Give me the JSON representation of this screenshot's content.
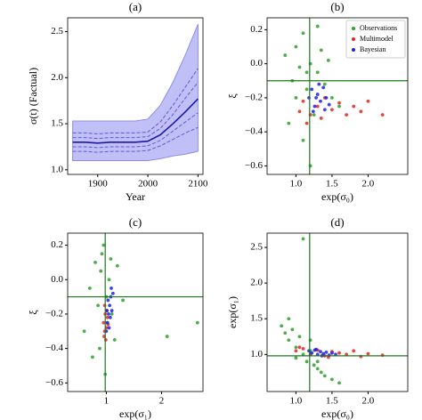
{
  "chart_data": [
    {
      "type": "line",
      "title": "(a)",
      "xlabel": "Year",
      "ylabel": "σ(t) (Factual)",
      "x": [
        1850,
        1875,
        1900,
        1925,
        1950,
        1975,
        2000,
        2025,
        2050,
        2075,
        2100
      ],
      "band": {
        "color": "#8c8cf0",
        "lower": [
          1.1,
          1.1,
          1.1,
          1.1,
          1.1,
          1.1,
          1.1,
          1.12,
          1.15,
          1.17,
          1.2
        ],
        "upper": [
          1.53,
          1.53,
          1.53,
          1.53,
          1.53,
          1.53,
          1.55,
          1.7,
          1.95,
          2.25,
          2.58
        ]
      },
      "series": [
        {
          "color": "#5a5ad8",
          "linestyle": "dashed",
          "values": [
            1.35,
            1.35,
            1.34,
            1.35,
            1.35,
            1.35,
            1.36,
            1.45,
            1.6,
            1.78,
            1.95
          ]
        },
        {
          "color": "#5a5ad8",
          "linestyle": "dashed",
          "values": [
            1.25,
            1.25,
            1.24,
            1.25,
            1.25,
            1.25,
            1.26,
            1.32,
            1.42,
            1.52,
            1.62
          ]
        },
        {
          "color": "#5a5ad8",
          "linestyle": "dashed",
          "values": [
            1.4,
            1.4,
            1.39,
            1.4,
            1.4,
            1.4,
            1.41,
            1.52,
            1.7,
            1.9,
            2.1
          ]
        },
        {
          "color": "#5a5ad8",
          "linestyle": "dashed",
          "values": [
            1.2,
            1.2,
            1.19,
            1.2,
            1.2,
            1.2,
            1.21,
            1.26,
            1.33,
            1.4,
            1.46
          ]
        },
        {
          "color": "#1a1aa0",
          "linestyle": "solid",
          "values": [
            1.3,
            1.3,
            1.29,
            1.3,
            1.3,
            1.3,
            1.31,
            1.38,
            1.5,
            1.63,
            1.77
          ]
        }
      ],
      "xlim": [
        1840,
        2110
      ],
      "xticks": [
        1900,
        2000,
        2100
      ],
      "ylim": [
        0.95,
        2.65
      ],
      "yticks": [
        {
          "value": 1,
          "label": "1.0"
        },
        1.5,
        {
          "value": 2,
          "label": "2.0"
        },
        2.5
      ]
    },
    {
      "type": "scatter",
      "title": "(b)",
      "xlabel": "exp(σ₀)",
      "ylabel": "ξ",
      "legend": "upper right",
      "series": [
        {
          "name": "Observations",
          "color": "#2ca02c",
          "x": [
            0.85,
            0.95,
            1.0,
            1.05,
            1.1,
            1.15,
            1.2,
            1.25,
            1.3,
            1.35,
            1.4,
            1.5,
            1.6,
            0.9,
            1.1,
            1.2,
            1.3,
            1.0,
            1.15,
            1.45
          ],
          "values": [
            0.05,
            -0.1,
            0.1,
            -0.02,
            0.18,
            -0.15,
            0.0,
            -0.3,
            -0.05,
            0.08,
            -0.12,
            -0.2,
            -0.25,
            -0.35,
            -0.45,
            -0.6,
            0.22,
            -0.2,
            -0.05,
            0.02
          ]
        },
        {
          "name": "Multimodel",
          "color": "#e8221e",
          "x": [
            1.05,
            1.1,
            1.2,
            1.3,
            1.4,
            1.5,
            1.6,
            1.7,
            1.8,
            1.9,
            2.0,
            2.2,
            1.15,
            1.35
          ],
          "values": [
            -0.28,
            -0.22,
            -0.3,
            -0.25,
            -0.2,
            -0.27,
            -0.23,
            -0.3,
            -0.25,
            -0.28,
            -0.22,
            -0.3,
            -0.35,
            -0.32
          ]
        },
        {
          "name": "Bayesian",
          "color": "#1f1fe8",
          "x": [
            1.18,
            1.22,
            1.26,
            1.3,
            1.34,
            1.38,
            1.42,
            1.46,
            1.24,
            1.32,
            1.4,
            1.28
          ],
          "values": [
            -0.2,
            -0.15,
            -0.25,
            -0.18,
            -0.22,
            -0.14,
            -0.2,
            -0.24,
            -0.28,
            -0.12,
            -0.27,
            -0.2
          ]
        }
      ],
      "hlines": [
        -0.1
      ],
      "vlines": [
        1.19
      ],
      "refcolor": "#1a7a1a",
      "xlim": [
        0.6,
        2.55
      ],
      "xticks": [
        {
          "value": 1,
          "label": "1.0"
        },
        1.5,
        {
          "value": 2,
          "label": "2.0"
        }
      ],
      "ylim": [
        -0.65,
        0.27
      ],
      "yticks": [
        {
          "value": -0.6,
          "label": "−0.6"
        },
        {
          "value": -0.4,
          "label": "−0.4"
        },
        {
          "value": -0.2,
          "label": "−0.2"
        },
        {
          "value": 0,
          "label": "0.0"
        },
        0.2
      ]
    },
    {
      "type": "scatter",
      "title": "(c)",
      "xlabel": "exp(σ₁)",
      "ylabel": "ξ",
      "series": [
        {
          "color": "#2ca02c",
          "x": [
            0.7,
            0.8,
            0.85,
            0.9,
            0.95,
            1.0,
            1.05,
            1.1,
            1.2,
            1.3,
            0.6,
            0.88,
            0.98,
            1.15,
            0.92,
            1.02,
            2.1,
            2.65,
            0.75,
            1.08
          ],
          "values": [
            -0.05,
            0.1,
            -0.15,
            0.05,
            0.2,
            -0.1,
            0.0,
            -0.2,
            0.08,
            -0.12,
            -0.3,
            -0.4,
            -0.55,
            -0.35,
            0.15,
            -0.25,
            -0.33,
            -0.25,
            -0.45,
            0.12
          ]
        },
        {
          "color": "#e8221e",
          "x": [
            0.95,
            0.97,
            0.98,
            1.0,
            1.02,
            0.96,
            0.99,
            1.01,
            1.03,
            0.97
          ],
          "values": [
            -0.25,
            -0.3,
            -0.2,
            -0.28,
            -0.22,
            -0.33,
            -0.35,
            -0.18,
            -0.26,
            -0.15
          ]
        },
        {
          "color": "#1f1fe8",
          "x": [
            1.0,
            1.02,
            1.04,
            1.06,
            1.08,
            1.1,
            1.12,
            1.05,
            1.03,
            1.07,
            1.09,
            1.01
          ],
          "values": [
            -0.3,
            -0.25,
            -0.2,
            -0.15,
            -0.1,
            -0.18,
            -0.08,
            -0.28,
            -0.12,
            -0.22,
            -0.05,
            -0.18
          ]
        }
      ],
      "hlines": [
        -0.1
      ],
      "vlines": [
        0.98
      ],
      "refcolor": "#1a7a1a",
      "xlim": [
        0.3,
        2.75
      ],
      "xticks": [
        1,
        2
      ],
      "ylim": [
        -0.65,
        0.27
      ],
      "yticks": [
        {
          "value": -0.6,
          "label": "−0.6"
        },
        {
          "value": -0.4,
          "label": "−0.4"
        },
        {
          "value": -0.2,
          "label": "−0.2"
        },
        {
          "value": 0,
          "label": "0.0"
        },
        0.2
      ]
    },
    {
      "type": "scatter",
      "title": "(d)",
      "xlabel": "exp(σ₀)",
      "ylabel": "exp(σ₁)",
      "series": [
        {
          "color": "#2ca02c",
          "x": [
            0.8,
            0.85,
            0.9,
            0.95,
            1.0,
            1.05,
            1.1,
            1.15,
            1.2,
            1.25,
            1.3,
            1.35,
            1.4,
            1.5,
            1.6,
            0.9,
            1.0,
            1.1,
            1.2,
            1.3
          ],
          "values": [
            1.4,
            1.3,
            1.2,
            1.35,
            1.1,
            1.25,
            1.0,
            0.9,
            1.05,
            0.85,
            0.8,
            0.75,
            0.7,
            0.65,
            0.6,
            1.5,
            0.95,
            2.62,
            1.2,
            0.9
          ]
        },
        {
          "color": "#e8221e",
          "x": [
            1.0,
            1.1,
            1.2,
            1.3,
            1.4,
            1.5,
            1.6,
            1.7,
            1.8,
            1.9,
            2.0,
            2.2,
            1.05,
            1.45
          ],
          "values": [
            1.05,
            1.08,
            1.0,
            1.06,
            0.98,
            1.04,
            1.02,
            1.0,
            1.05,
            0.97,
            1.01,
            0.99,
            1.1,
            0.96
          ]
        },
        {
          "color": "#1f1fe8",
          "x": [
            1.18,
            1.22,
            1.26,
            1.3,
            1.34,
            1.38,
            1.42,
            1.46,
            1.5,
            1.55,
            1.28,
            1.36
          ],
          "values": [
            1.05,
            1.02,
            1.06,
            1.0,
            1.04,
            1.01,
            1.03,
            0.99,
            1.02,
            1.0,
            1.07,
            0.98
          ]
        }
      ],
      "hlines": [
        0.98
      ],
      "vlines": [
        1.19
      ],
      "refcolor": "#1a7a1a",
      "xlim": [
        0.6,
        2.55
      ],
      "xticks": [
        {
          "value": 1,
          "label": "1.0"
        },
        1.5,
        {
          "value": 2,
          "label": "2.0"
        }
      ],
      "ylim": [
        0.48,
        2.7
      ],
      "yticks": [
        {
          "value": 1,
          "label": "1.0"
        },
        1.5,
        {
          "value": 2,
          "label": "2.0"
        },
        2.5
      ]
    }
  ]
}
